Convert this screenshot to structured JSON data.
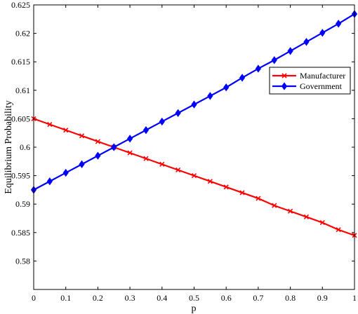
{
  "chart_data": {
    "type": "line",
    "title": "",
    "xlabel": "p",
    "ylabel": "Equilibrium  Probability",
    "xlim": [
      0,
      1
    ],
    "ylim": [
      0.575,
      0.625
    ],
    "xticks": [
      0,
      0.1,
      0.2,
      0.3,
      0.4,
      0.5,
      0.6,
      0.7,
      0.8,
      0.9,
      1
    ],
    "xtick_labels": [
      "0",
      "0.1",
      "0.2",
      "0.3",
      "0.4",
      "0.5",
      "0.6",
      "0.7",
      "0.8",
      "0.9",
      "1"
    ],
    "yticks": [
      0.58,
      0.585,
      0.59,
      0.595,
      0.6,
      0.605,
      0.61,
      0.615,
      0.62,
      0.625
    ],
    "ytick_labels": [
      "0.58",
      "0.585",
      "0.59",
      "0.595",
      "0.6",
      "0.605",
      "0.61",
      "0.615",
      "0.62",
      "0.625"
    ],
    "grid": false,
    "legend_position": "right",
    "x": [
      0,
      0.05,
      0.1,
      0.15,
      0.2,
      0.25,
      0.3,
      0.35,
      0.4,
      0.45,
      0.5,
      0.55,
      0.6,
      0.65,
      0.7,
      0.75,
      0.8,
      0.85,
      0.9,
      0.95,
      1
    ],
    "series": [
      {
        "name": "Manufacturer",
        "color": "#ff0000",
        "marker": "x",
        "values": [
          0.605,
          0.604,
          0.603,
          0.602,
          0.601,
          0.6,
          0.599,
          0.598,
          0.597,
          0.596,
          0.595,
          0.594,
          0.593,
          0.592,
          0.591,
          0.58975,
          0.58875,
          0.58775,
          0.58675,
          0.5855,
          0.5845
        ]
      },
      {
        "name": "Government",
        "color": "#0000ff",
        "marker": "diamond",
        "values": [
          0.5925,
          0.594,
          0.5955,
          0.597,
          0.5985,
          0.6,
          0.6015,
          0.603,
          0.6045,
          0.606,
          0.6075,
          0.609,
          0.6105,
          0.6122,
          0.6138,
          0.6153,
          0.6169,
          0.6185,
          0.6201,
          0.6217,
          0.6234
        ]
      }
    ]
  }
}
